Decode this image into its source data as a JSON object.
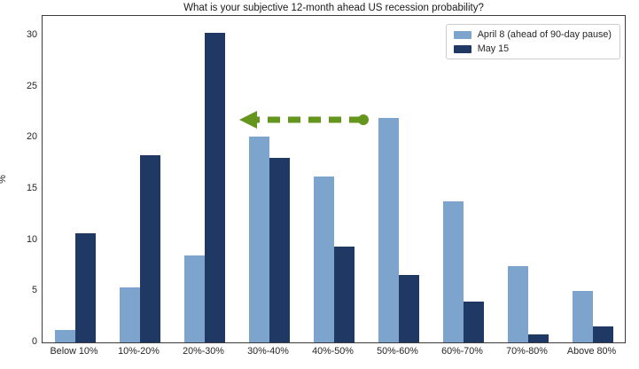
{
  "chart_data": {
    "type": "bar",
    "title": "What is your subjective 12-month ahead US recession probability?",
    "xlabel": "",
    "ylabel": "%",
    "categories": [
      "Below 10%",
      "10%-20%",
      "20%-30%",
      "30%-40%",
      "40%-50%",
      "50%-60%",
      "60%-70%",
      "70%-80%",
      "Above 80%"
    ],
    "series": [
      {
        "name": "April 8 (ahead of 90-day pause)",
        "color": "#7da4cd",
        "values": [
          1.2,
          5.4,
          8.5,
          20.1,
          16.2,
          21.9,
          13.8,
          7.5,
          5.0
        ]
      },
      {
        "name": "May 15",
        "color": "#1f3864",
        "values": [
          10.7,
          18.3,
          30.3,
          18.0,
          9.4,
          6.6,
          4.0,
          0.8,
          1.6
        ]
      }
    ],
    "ylim": [
      0,
      31.9
    ],
    "yticks": [
      0,
      5,
      10,
      15,
      20,
      25,
      30
    ],
    "grid": false,
    "legend_position": "upper right",
    "annotation": {
      "type": "arrow",
      "style": "dashed",
      "color": "#64961e",
      "direction": "left",
      "from_category": "50%-60%",
      "to_category": "20%-30%",
      "y_value": 22
    }
  },
  "colors": {
    "april_blue": "#7da4cd",
    "may_navy": "#1f3864",
    "arrow_green": "#64961e",
    "axis_spine": "#3b3b3b",
    "background": "#ffffff"
  }
}
